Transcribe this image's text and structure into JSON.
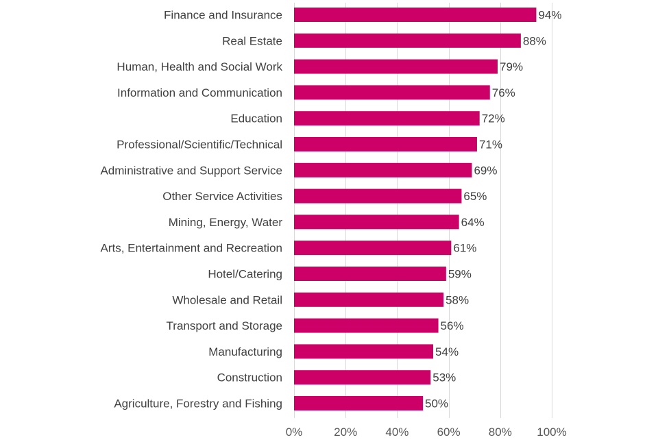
{
  "chart_data": {
    "type": "bar",
    "orientation": "horizontal",
    "categories": [
      "Finance and Insurance",
      "Real Estate",
      "Human, Health and Social Work",
      "Information and Communication",
      "Education",
      "Professional/Scientific/Technical",
      "Administrative and Support Service",
      "Other Service Activities",
      "Mining, Energy, Water",
      "Arts, Entertainment and Recreation",
      "Hotel/Catering",
      "Wholesale and Retail",
      "Transport and Storage",
      "Manufacturing",
      "Construction",
      "Agriculture, Forestry and Fishing"
    ],
    "values": [
      94,
      88,
      79,
      76,
      72,
      71,
      69,
      65,
      64,
      61,
      59,
      58,
      56,
      54,
      53,
      50
    ],
    "value_labels": [
      "94%",
      "88%",
      "79%",
      "76%",
      "72%",
      "71%",
      "69%",
      "65%",
      "64%",
      "61%",
      "59%",
      "58%",
      "56%",
      "54%",
      "53%",
      "50%"
    ],
    "x_ticks": [
      0,
      20,
      40,
      60,
      80,
      100
    ],
    "x_tick_labels": [
      "0%",
      "20%",
      "40%",
      "60%",
      "80%",
      "100%"
    ],
    "xlim": [
      0,
      100
    ],
    "grid": true,
    "legend": "none",
    "title": "",
    "xlabel": "",
    "ylabel": "",
    "colors": {
      "bar": "#CC0066",
      "gridline": "#D9D9D9",
      "text": "#404040",
      "tick_text": "#595959"
    }
  }
}
